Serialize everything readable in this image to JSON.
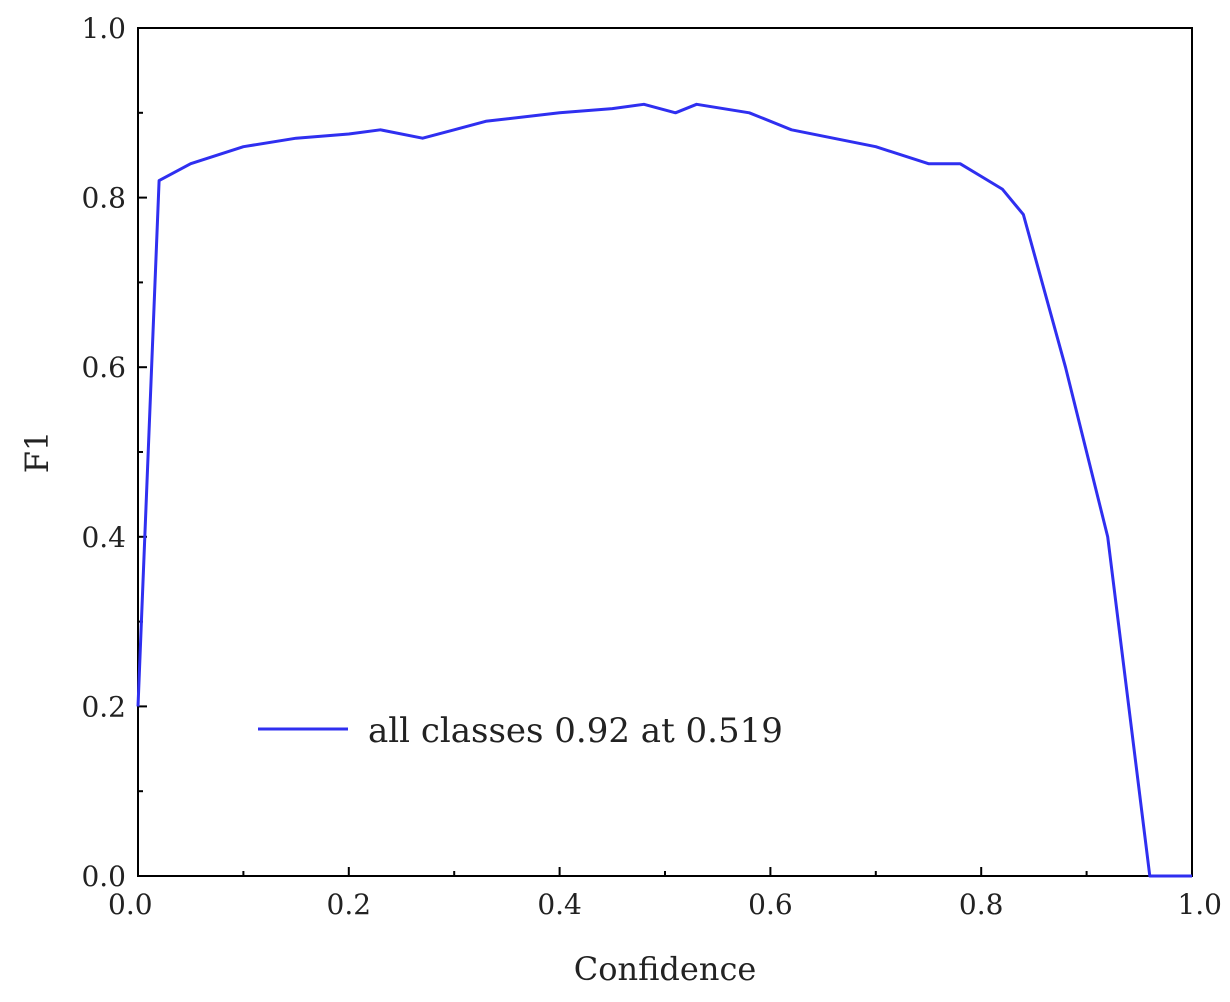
{
  "chart_data": {
    "type": "line",
    "title": "",
    "xlabel": "Confidence",
    "ylabel": "F1",
    "xlim": [
      0,
      1
    ],
    "ylim": [
      0,
      1
    ],
    "xticks": [
      "0.0",
      "0.2",
      "0.4",
      "0.6",
      "0.8",
      "1.0"
    ],
    "yticks": [
      "0.0",
      "0.2",
      "0.4",
      "0.6",
      "0.8",
      "1.0"
    ],
    "grid": false,
    "legend_position": "lower-left",
    "series": [
      {
        "name": "all classes 0.92 at 0.519",
        "color": "#2f2ff0",
        "x": [
          0.0,
          0.02,
          0.05,
          0.1,
          0.15,
          0.2,
          0.23,
          0.27,
          0.3,
          0.33,
          0.4,
          0.45,
          0.48,
          0.51,
          0.53,
          0.58,
          0.62,
          0.7,
          0.75,
          0.78,
          0.8,
          0.82,
          0.84,
          0.88,
          0.92,
          0.96,
          1.0
        ],
        "y": [
          0.2,
          0.82,
          0.84,
          0.86,
          0.87,
          0.875,
          0.88,
          0.87,
          0.88,
          0.89,
          0.9,
          0.905,
          0.91,
          0.9,
          0.91,
          0.9,
          0.88,
          0.86,
          0.84,
          0.84,
          0.825,
          0.81,
          0.78,
          0.6,
          0.4,
          0.0,
          0.0
        ]
      }
    ]
  }
}
